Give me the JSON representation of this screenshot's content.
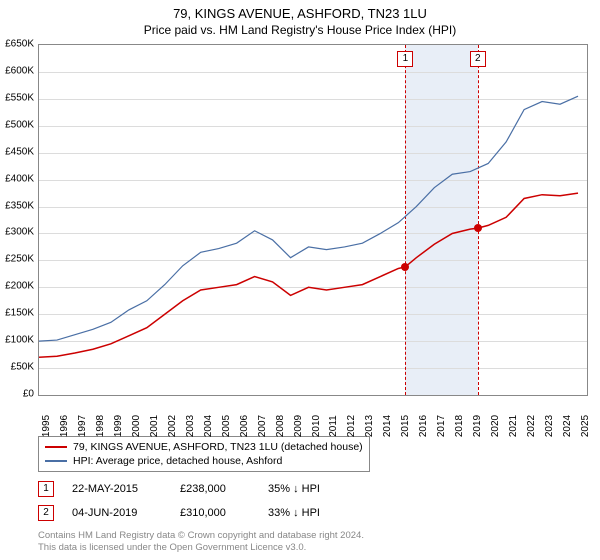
{
  "title": "79, KINGS AVENUE, ASHFORD, TN23 1LU",
  "subtitle": "Price paid vs. HM Land Registry's House Price Index (HPI)",
  "chart": {
    "type": "line",
    "background_color": "#ffffff",
    "grid_color": "#dcdcdc",
    "border_color": "#888888",
    "shaded_band": {
      "x_start": 2015.39,
      "x_end": 2019.42,
      "color": "#e8eef7"
    },
    "xlim": [
      1995,
      2025.5
    ],
    "ylim": [
      0,
      650000
    ],
    "ytick_step": 50000,
    "yticks": [
      "£0",
      "£50K",
      "£100K",
      "£150K",
      "£200K",
      "£250K",
      "£300K",
      "£350K",
      "£400K",
      "£450K",
      "£500K",
      "£550K",
      "£600K",
      "£650K"
    ],
    "xticks": [
      1995,
      1996,
      1997,
      1998,
      1999,
      2000,
      2001,
      2002,
      2003,
      2004,
      2005,
      2006,
      2007,
      2008,
      2009,
      2010,
      2011,
      2012,
      2013,
      2014,
      2015,
      2016,
      2017,
      2018,
      2019,
      2020,
      2021,
      2022,
      2023,
      2024,
      2025
    ],
    "axis_fontsize": 10,
    "title_fontsize": 13,
    "series": [
      {
        "name": "property",
        "label": "79, KINGS AVENUE, ASHFORD, TN23 1LU (detached house)",
        "color": "#cc0000",
        "line_width": 1.5,
        "data": [
          [
            1995,
            70000
          ],
          [
            1996,
            72000
          ],
          [
            1997,
            78000
          ],
          [
            1998,
            85000
          ],
          [
            1999,
            95000
          ],
          [
            2000,
            110000
          ],
          [
            2001,
            125000
          ],
          [
            2002,
            150000
          ],
          [
            2003,
            175000
          ],
          [
            2004,
            195000
          ],
          [
            2005,
            200000
          ],
          [
            2006,
            205000
          ],
          [
            2007,
            220000
          ],
          [
            2008,
            210000
          ],
          [
            2009,
            185000
          ],
          [
            2010,
            200000
          ],
          [
            2011,
            195000
          ],
          [
            2012,
            200000
          ],
          [
            2013,
            205000
          ],
          [
            2014,
            220000
          ],
          [
            2015,
            235000
          ],
          [
            2015.39,
            238000
          ],
          [
            2016,
            255000
          ],
          [
            2017,
            280000
          ],
          [
            2018,
            300000
          ],
          [
            2019,
            308000
          ],
          [
            2019.42,
            310000
          ],
          [
            2020,
            315000
          ],
          [
            2021,
            330000
          ],
          [
            2022,
            365000
          ],
          [
            2023,
            372000
          ],
          [
            2024,
            370000
          ],
          [
            2025,
            375000
          ]
        ]
      },
      {
        "name": "hpi",
        "label": "HPI: Average price, detached house, Ashford",
        "color": "#4a6fa5",
        "line_width": 1.2,
        "data": [
          [
            1995,
            100000
          ],
          [
            1996,
            102000
          ],
          [
            1997,
            112000
          ],
          [
            1998,
            122000
          ],
          [
            1999,
            135000
          ],
          [
            2000,
            158000
          ],
          [
            2001,
            175000
          ],
          [
            2002,
            205000
          ],
          [
            2003,
            240000
          ],
          [
            2004,
            265000
          ],
          [
            2005,
            272000
          ],
          [
            2006,
            282000
          ],
          [
            2007,
            305000
          ],
          [
            2008,
            288000
          ],
          [
            2009,
            255000
          ],
          [
            2010,
            275000
          ],
          [
            2011,
            270000
          ],
          [
            2012,
            275000
          ],
          [
            2013,
            282000
          ],
          [
            2014,
            300000
          ],
          [
            2015,
            320000
          ],
          [
            2016,
            350000
          ],
          [
            2017,
            385000
          ],
          [
            2018,
            410000
          ],
          [
            2019,
            415000
          ],
          [
            2020,
            430000
          ],
          [
            2021,
            470000
          ],
          [
            2022,
            530000
          ],
          [
            2023,
            545000
          ],
          [
            2024,
            540000
          ],
          [
            2025,
            555000
          ]
        ]
      }
    ],
    "vertical_markers": [
      {
        "id": "1",
        "x": 2015.39,
        "color": "#cc0000"
      },
      {
        "id": "2",
        "x": 2019.42,
        "color": "#cc0000"
      }
    ],
    "sale_points": [
      {
        "x": 2015.39,
        "y": 238000,
        "color": "#cc0000"
      },
      {
        "x": 2019.42,
        "y": 310000,
        "color": "#cc0000"
      }
    ]
  },
  "legend": {
    "item1_label": "79, KINGS AVENUE, ASHFORD, TN23 1LU (detached house)",
    "item1_color": "#cc0000",
    "item2_label": "HPI: Average price, detached house, Ashford",
    "item2_color": "#4a6fa5"
  },
  "sales": [
    {
      "id": "1",
      "date": "22-MAY-2015",
      "price": "£238,000",
      "delta": "35% ↓ HPI",
      "color": "#cc0000"
    },
    {
      "id": "2",
      "date": "04-JUN-2019",
      "price": "£310,000",
      "delta": "33% ↓ HPI",
      "color": "#cc0000"
    }
  ],
  "footer": {
    "line1": "Contains HM Land Registry data © Crown copyright and database right 2024.",
    "line2": "This data is licensed under the Open Government Licence v3.0."
  }
}
